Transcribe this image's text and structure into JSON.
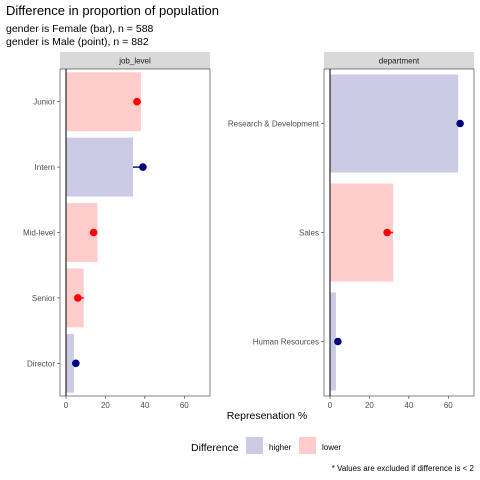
{
  "chart_data": {
    "type": "bar",
    "title": "Difference in proportion of population",
    "subtitle_lines": [
      "gender is Female (bar), n = 588",
      "gender is Male (point), n = 882"
    ],
    "xlabel": "Represenation %",
    "xlim": [
      0,
      70
    ],
    "x_ticks": [
      0,
      20,
      40,
      60
    ],
    "legend": {
      "title": "Difference",
      "placement": "bottom",
      "items": [
        {
          "label": "higher",
          "color": "#cbcbe6"
        },
        {
          "label": "lower",
          "color": "#ffcccc"
        }
      ]
    },
    "colors": {
      "higher_bar": "#cbcbe6",
      "lower_bar": "#ffcccc",
      "higher_point": "#000080",
      "lower_point": "#ff0000",
      "strip_bg": "#d9d9d9",
      "zero_line": "#000000"
    },
    "caption": "* Values are excluded if difference is < 2",
    "facets": [
      {
        "label": "job_level",
        "categories": [
          "Junior",
          "Intern",
          "Mid-level",
          "Senior",
          "Director"
        ],
        "female_values": [
          38,
          34,
          16,
          9,
          4
        ],
        "male_values": [
          36,
          39,
          14,
          6,
          5
        ],
        "difference": [
          "lower",
          "higher",
          "lower",
          "lower",
          "higher"
        ]
      },
      {
        "label": "department",
        "categories": [
          "Research & Development",
          "Sales",
          "Human Resources"
        ],
        "female_values": [
          65,
          32,
          3
        ],
        "male_values": [
          66,
          29,
          4
        ],
        "difference": [
          "higher",
          "lower",
          "higher"
        ]
      }
    ]
  }
}
